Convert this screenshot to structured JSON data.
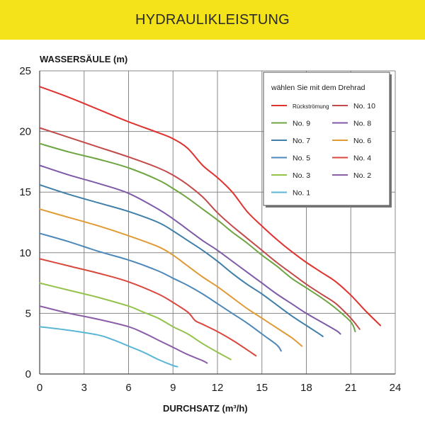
{
  "header": {
    "title": "HYDRAULIKLEISTUNG",
    "color": "#f5e31a"
  },
  "chart_data": {
    "type": "line",
    "ylabel": "WASSERSÄULE (m)",
    "xlabel": "DURCHSATZ (m³/h)",
    "xlim": [
      0,
      24
    ],
    "ylim": [
      0,
      25
    ],
    "x_ticks": [
      0,
      3,
      6,
      9,
      12,
      15,
      18,
      21,
      24
    ],
    "y_ticks": [
      0,
      5,
      10,
      15,
      20,
      25
    ],
    "grid": true,
    "legend": {
      "title": "wählen Sie mit dem Drehrad",
      "placement": "top-right"
    },
    "series": [
      {
        "name": "Rückströmung",
        "color": "#e0322e",
        "points": [
          [
            0,
            23.7
          ],
          [
            2,
            22.8
          ],
          [
            4,
            21.8
          ],
          [
            6,
            20.8
          ],
          [
            8,
            19.9
          ],
          [
            9,
            19.4
          ],
          [
            10,
            18.6
          ],
          [
            11,
            17.2
          ],
          [
            12,
            16.2
          ],
          [
            13,
            15.0
          ],
          [
            14,
            13.4
          ],
          [
            15,
            12.2
          ],
          [
            16,
            11.1
          ],
          [
            17,
            10.1
          ],
          [
            18,
            9.2
          ],
          [
            19,
            8.4
          ],
          [
            20,
            7.6
          ],
          [
            21,
            6.5
          ],
          [
            22,
            5.2
          ],
          [
            23,
            4.0
          ]
        ]
      },
      {
        "name": "No. 10",
        "color": "#c24a4a",
        "points": [
          [
            0,
            20.3
          ],
          [
            2,
            19.5
          ],
          [
            4,
            18.7
          ],
          [
            6,
            17.9
          ],
          [
            8,
            17.0
          ],
          [
            9,
            16.4
          ],
          [
            10,
            15.6
          ],
          [
            11,
            14.6
          ],
          [
            12,
            13.3
          ],
          [
            13,
            12.2
          ],
          [
            14,
            11.2
          ],
          [
            15,
            10.2
          ],
          [
            16,
            9.2
          ],
          [
            17,
            8.3
          ],
          [
            18,
            7.4
          ],
          [
            19,
            6.6
          ],
          [
            20,
            5.8
          ],
          [
            21,
            4.6
          ],
          [
            21.6,
            3.7
          ]
        ]
      },
      {
        "name": "No. 9",
        "color": "#6ea542",
        "points": [
          [
            0,
            19.0
          ],
          [
            2,
            18.3
          ],
          [
            4,
            17.7
          ],
          [
            6,
            17.0
          ],
          [
            8,
            16.0
          ],
          [
            9,
            15.3
          ],
          [
            10,
            14.5
          ],
          [
            11,
            13.6
          ],
          [
            12,
            12.7
          ],
          [
            13,
            11.7
          ],
          [
            14,
            10.8
          ],
          [
            15,
            9.8
          ],
          [
            16,
            8.9
          ],
          [
            17,
            7.9
          ],
          [
            18,
            7.1
          ],
          [
            19,
            6.3
          ],
          [
            20,
            5.4
          ],
          [
            21,
            4.3
          ],
          [
            21.3,
            3.5
          ]
        ]
      },
      {
        "name": "No. 8",
        "color": "#7e5aa8",
        "points": [
          [
            0,
            17.2
          ],
          [
            2,
            16.4
          ],
          [
            4,
            15.7
          ],
          [
            6,
            14.9
          ],
          [
            8,
            13.6
          ],
          [
            9,
            12.8
          ],
          [
            10,
            11.9
          ],
          [
            11,
            11.0
          ],
          [
            12,
            10.2
          ],
          [
            13,
            9.3
          ],
          [
            14,
            8.4
          ],
          [
            15,
            7.5
          ],
          [
            16,
            6.6
          ],
          [
            17,
            5.8
          ],
          [
            18,
            5.0
          ],
          [
            19,
            4.3
          ],
          [
            20,
            3.6
          ],
          [
            20.3,
            3.3
          ]
        ]
      },
      {
        "name": "No. 7",
        "color": "#3f7fa8",
        "points": [
          [
            0,
            15.6
          ],
          [
            2,
            14.8
          ],
          [
            4,
            14.1
          ],
          [
            6,
            13.4
          ],
          [
            8,
            12.5
          ],
          [
            9,
            11.8
          ],
          [
            10,
            11.0
          ],
          [
            11,
            10.2
          ],
          [
            12,
            9.3
          ],
          [
            13,
            8.3
          ],
          [
            14,
            7.4
          ],
          [
            15,
            6.6
          ],
          [
            16,
            5.7
          ],
          [
            17,
            4.8
          ],
          [
            18,
            4.0
          ],
          [
            19,
            3.2
          ],
          [
            19.1,
            3.1
          ]
        ]
      },
      {
        "name": "No. 6",
        "color": "#e09a36",
        "points": [
          [
            0,
            13.6
          ],
          [
            2,
            12.9
          ],
          [
            4,
            12.2
          ],
          [
            6,
            11.4
          ],
          [
            8,
            10.5
          ],
          [
            9,
            9.8
          ],
          [
            10,
            8.9
          ],
          [
            11,
            8.0
          ],
          [
            12,
            7.2
          ],
          [
            13,
            6.3
          ],
          [
            14,
            5.4
          ],
          [
            15,
            4.6
          ],
          [
            16,
            3.8
          ],
          [
            17,
            3.0
          ],
          [
            17.7,
            2.3
          ]
        ]
      },
      {
        "name": "No. 5",
        "color": "#4d88b8",
        "points": [
          [
            0,
            11.6
          ],
          [
            2,
            10.9
          ],
          [
            4,
            10.1
          ],
          [
            6,
            9.4
          ],
          [
            8,
            8.5
          ],
          [
            9,
            7.9
          ],
          [
            10,
            7.3
          ],
          [
            11,
            6.6
          ],
          [
            12,
            5.8
          ],
          [
            13,
            5.0
          ],
          [
            14,
            4.2
          ],
          [
            15,
            3.3
          ],
          [
            16,
            2.4
          ],
          [
            16.3,
            1.9
          ]
        ]
      },
      {
        "name": "No. 4",
        "color": "#d9473d",
        "points": [
          [
            0,
            9.5
          ],
          [
            2,
            8.9
          ],
          [
            4,
            8.3
          ],
          [
            6,
            7.6
          ],
          [
            8,
            6.6
          ],
          [
            9,
            5.9
          ],
          [
            10,
            5.1
          ],
          [
            10.5,
            4.4
          ],
          [
            11,
            4.1
          ],
          [
            12,
            3.5
          ],
          [
            13,
            2.8
          ],
          [
            14,
            2.0
          ],
          [
            14.6,
            1.5
          ]
        ]
      },
      {
        "name": "No. 3",
        "color": "#93c34b",
        "points": [
          [
            0,
            7.5
          ],
          [
            2,
            6.9
          ],
          [
            4,
            6.3
          ],
          [
            6,
            5.6
          ],
          [
            7,
            5.1
          ],
          [
            8,
            4.6
          ],
          [
            9,
            3.9
          ],
          [
            10,
            3.3
          ],
          [
            11,
            2.5
          ],
          [
            12,
            1.8
          ],
          [
            12.9,
            1.2
          ]
        ]
      },
      {
        "name": "No. 2",
        "color": "#8a5fa8",
        "points": [
          [
            0,
            5.6
          ],
          [
            2,
            5.0
          ],
          [
            4,
            4.5
          ],
          [
            6,
            3.9
          ],
          [
            7,
            3.4
          ],
          [
            8,
            2.8
          ],
          [
            9,
            2.2
          ],
          [
            10,
            1.6
          ],
          [
            11,
            1.1
          ],
          [
            11.3,
            0.9
          ]
        ]
      },
      {
        "name": "No. 1",
        "color": "#5bb6d6",
        "points": [
          [
            0,
            3.9
          ],
          [
            2,
            3.6
          ],
          [
            4,
            3.2
          ],
          [
            5,
            2.8
          ],
          [
            6,
            2.3
          ],
          [
            7,
            1.8
          ],
          [
            8,
            1.2
          ],
          [
            9,
            0.7
          ],
          [
            9.3,
            0.6
          ]
        ]
      }
    ]
  }
}
